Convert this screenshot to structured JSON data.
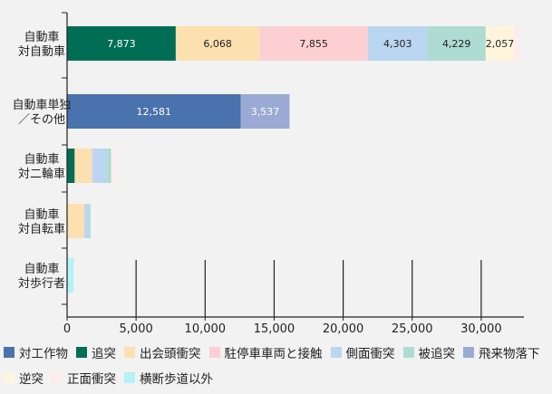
{
  "chart_data": {
    "type": "bar",
    "orientation": "horizontal",
    "stacked": true,
    "title": "",
    "xlabel": "",
    "ylabel": "",
    "xlim": [
      0,
      32500
    ],
    "x_ticks": [
      "0",
      "5,000",
      "10,000",
      "15,000",
      "20,000",
      "25,000",
      "30,000"
    ],
    "grid": "vertical",
    "legend_position": "bottom",
    "categories": [
      [
        "自動車",
        "対自動車"
      ],
      [
        "自動車単独",
        "／その他"
      ],
      [
        "自動車",
        "対二輪車"
      ],
      [
        "自動車",
        "対自転車"
      ],
      [
        "自動車",
        "対歩行者"
      ]
    ],
    "series": [
      {
        "name": "対工作物",
        "color": "#4a72ad",
        "values": [
          0,
          12581,
          0,
          0,
          0
        ],
        "labels": [
          "",
          "12,581",
          "",
          "",
          ""
        ]
      },
      {
        "name": "追突",
        "color": "#006e55",
        "values": [
          7873,
          0,
          550,
          0,
          0
        ],
        "labels": [
          "7,873",
          "",
          "",
          "",
          ""
        ]
      },
      {
        "name": "出会頭衝突",
        "color": "#fde0b0",
        "values": [
          6068,
          0,
          1200,
          1250,
          0
        ],
        "labels": [
          "6,068",
          "",
          "",
          "",
          ""
        ]
      },
      {
        "name": "駐停車車両と接触",
        "color": "#fcd0d2",
        "values": [
          7855,
          0,
          100,
          0,
          0
        ],
        "labels": [
          "7,855",
          "",
          "",
          "",
          ""
        ]
      },
      {
        "name": "側面衝突",
        "color": "#bad6f0",
        "values": [
          4303,
          0,
          1050,
          350,
          0
        ],
        "labels": [
          "4,303",
          "",
          "",
          "",
          ""
        ]
      },
      {
        "name": "被追突",
        "color": "#aedcd2",
        "values": [
          4229,
          0,
          300,
          100,
          0
        ],
        "labels": [
          "4,229",
          "",
          "",
          "",
          ""
        ]
      },
      {
        "name": "飛来物落下",
        "color": "#9aaad4",
        "values": [
          0,
          3537,
          0,
          0,
          0
        ],
        "labels": [
          "",
          "3,537",
          "",
          "",
          ""
        ]
      },
      {
        "name": "逆突",
        "color": "#fff5dc",
        "values": [
          2057,
          0,
          100,
          0,
          0
        ],
        "labels": [
          "2,057",
          "",
          "",
          "",
          ""
        ]
      },
      {
        "name": "正面衝突",
        "color": "#fdebed",
        "values": [
          450,
          0,
          150,
          0,
          0
        ],
        "labels": [
          "",
          "",
          "",
          "",
          ""
        ]
      },
      {
        "name": "横断歩道以外",
        "color": "#b4f2f7",
        "values": [
          0,
          0,
          0,
          0,
          480
        ],
        "labels": [
          "",
          "",
          "",
          "",
          ""
        ]
      }
    ]
  }
}
